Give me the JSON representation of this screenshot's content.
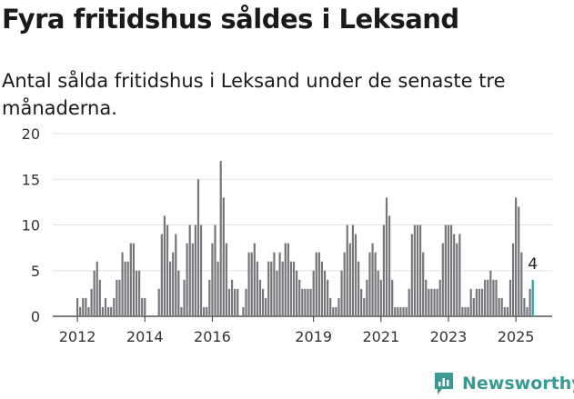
{
  "header": {
    "title": "Fyra fritidshus såldes i Leksand",
    "subtitle": "Antal sålda fritidshus i Leksand under de senaste tre månaderna."
  },
  "brand": {
    "name": "Newsworthy",
    "color": "#3a9a93"
  },
  "chart_data": {
    "type": "bar",
    "title": "Fyra fritidshus såldes i Leksand",
    "subtitle": "Antal sålda fritidshus i Leksand under de senaste tre månaderna.",
    "xlabel": "",
    "ylabel": "",
    "x_unit": "month",
    "x_start": "2012-01",
    "ylim": [
      0,
      20
    ],
    "y_ticks": [
      0,
      5,
      10,
      15,
      20
    ],
    "x_tick_labels": [
      "2012",
      "2014",
      "2016",
      "2019",
      "2021",
      "2023",
      "2025"
    ],
    "grid": true,
    "bar_color": "#77767b",
    "highlight_color": "#2aa39c",
    "annotation": "4",
    "values": [
      2,
      1,
      2,
      2,
      1,
      3,
      5,
      6,
      4,
      1,
      2,
      1,
      1,
      2,
      4,
      4,
      7,
      6,
      6,
      8,
      8,
      5,
      5,
      2,
      2,
      0,
      0,
      0,
      0,
      3,
      9,
      11,
      10,
      6,
      7,
      9,
      5,
      1,
      4,
      8,
      10,
      8,
      10,
      15,
      10,
      1,
      1,
      4,
      8,
      10,
      6,
      17,
      13,
      8,
      3,
      4,
      3,
      3,
      0,
      1,
      3,
      7,
      7,
      8,
      6,
      4,
      3,
      2,
      6,
      6,
      7,
      5,
      7,
      6,
      8,
      8,
      6,
      6,
      5,
      4,
      3,
      3,
      3,
      3,
      5,
      7,
      7,
      6,
      5,
      4,
      2,
      1,
      1,
      2,
      5,
      7,
      10,
      8,
      10,
      9,
      6,
      3,
      2,
      4,
      7,
      8,
      7,
      5,
      4,
      10,
      13,
      11,
      4,
      1,
      1,
      1,
      1,
      1,
      3,
      9,
      10,
      10,
      10,
      7,
      4,
      3,
      3,
      3,
      3,
      4,
      8,
      10,
      10,
      10,
      9,
      8,
      9,
      1,
      1,
      1,
      3,
      2,
      3,
      3,
      3,
      4,
      4,
      5,
      4,
      4,
      2,
      2,
      1,
      1,
      4,
      8,
      13,
      12,
      7,
      2,
      1,
      3,
      4
    ]
  }
}
